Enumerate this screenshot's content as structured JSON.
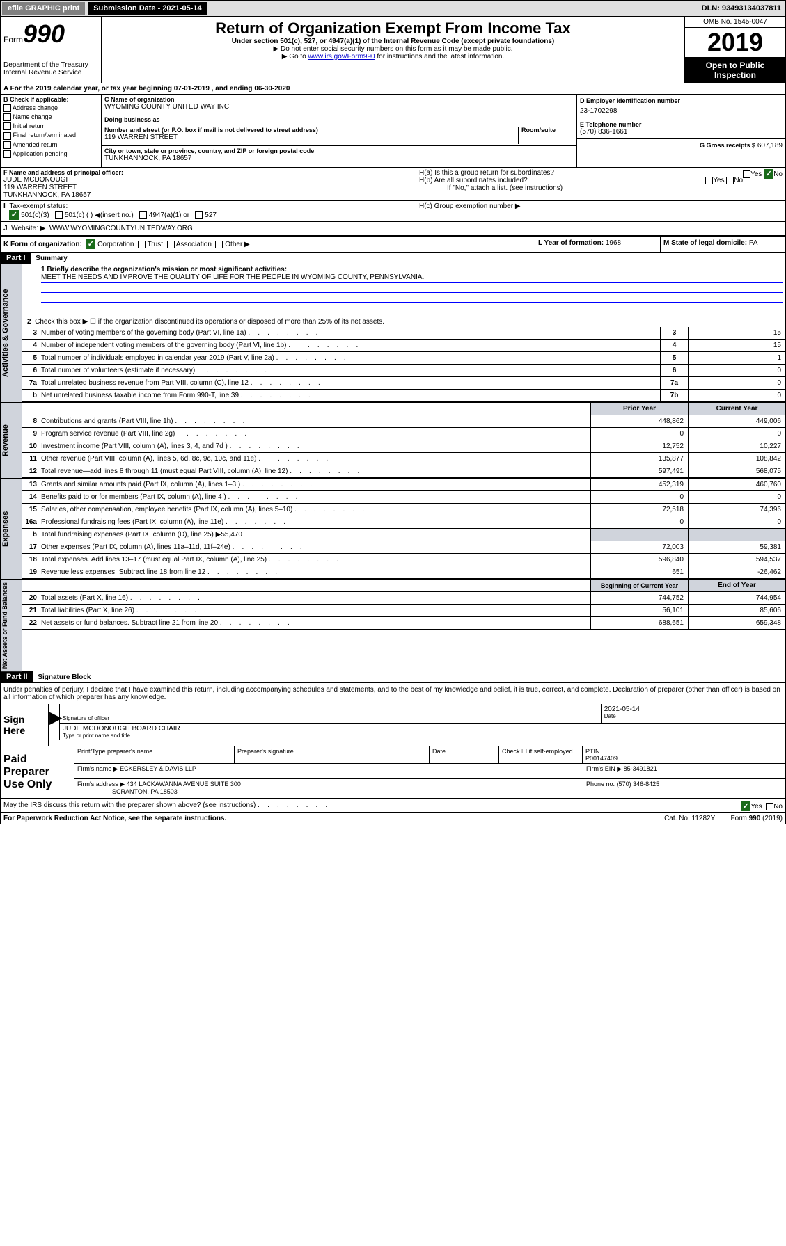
{
  "top": {
    "efile": "efile GRAPHIC print",
    "sub_date": "Submission Date - 2021-05-14",
    "dln": "DLN: 93493134037811"
  },
  "header": {
    "form_label": "Form",
    "form_no": "990",
    "dept": "Department of the Treasury Internal Revenue Service",
    "title": "Return of Organization Exempt From Income Tax",
    "subtitle": "Under section 501(c), 527, or 4947(a)(1) of the Internal Revenue Code (except private foundations)",
    "note1": "▶ Do not enter social security numbers on this form as it may be made public.",
    "note2_pre": "▶ Go to ",
    "note2_link": "www.irs.gov/Form990",
    "note2_post": " for instructions and the latest information.",
    "omb": "OMB No. 1545-0047",
    "year": "2019",
    "open": "Open to Public Inspection"
  },
  "period": "A For the 2019 calendar year, or tax year beginning 07-01-2019   , and ending 06-30-2020",
  "box_b": {
    "label": "B Check if applicable:",
    "items": [
      "Address change",
      "Name change",
      "Initial return",
      "Final return/terminated",
      "Amended return",
      "Application pending"
    ]
  },
  "box_c": {
    "name_label": "C Name of organization",
    "name": "WYOMING COUNTY UNITED WAY INC",
    "dba_label": "Doing business as",
    "addr_label": "Number and street (or P.O. box if mail is not delivered to street address)",
    "room_label": "Room/suite",
    "addr": "119 WARREN STREET",
    "city_label": "City or town, state or province, country, and ZIP or foreign postal code",
    "city": "TUNKHANNOCK, PA  18657"
  },
  "box_d": {
    "label": "D Employer identification number",
    "value": "23-1702298"
  },
  "box_e": {
    "label": "E Telephone number",
    "value": "(570) 836-1661"
  },
  "box_g": {
    "label": "G Gross receipts $",
    "value": "607,189"
  },
  "box_f": {
    "label": "F  Name and address of principal officer:",
    "name": "JUDE MCDONOUGH",
    "addr1": "119 WARREN STREET",
    "addr2": "TUNKHANNOCK, PA  18657"
  },
  "box_h": {
    "a_label": "H(a)  Is this a group return for subordinates?",
    "b_label": "H(b)  Are all subordinates included?",
    "b_note": "If \"No,\" attach a list. (see instructions)",
    "c_label": "H(c)  Group exemption number ▶"
  },
  "box_i": {
    "label": "Tax-exempt status:",
    "opts": [
      "501(c)(3)",
      "501(c) (  ) ◀(insert no.)",
      "4947(a)(1) or",
      "527"
    ]
  },
  "box_j": {
    "label": "Website: ▶",
    "value": "WWW.WYOMINGCOUNTYUNITEDWAY.ORG"
  },
  "box_k": "K Form of organization:",
  "box_k_opts": [
    "Corporation",
    "Trust",
    "Association",
    "Other ▶"
  ],
  "box_l": {
    "label": "L Year of formation:",
    "value": "1968"
  },
  "box_m": {
    "label": "M State of legal domicile:",
    "value": "PA"
  },
  "part1": {
    "hdr": "Part I",
    "title": "Summary"
  },
  "mission_label": "1  Briefly describe the organization's mission or most significant activities:",
  "mission": "MEET THE NEEDS AND IMPROVE THE QUALITY OF LIFE FOR THE PEOPLE IN WYOMING COUNTY, PENNSYLVANIA.",
  "line2": "Check this box ▶ ☐  if the organization discontinued its operations or disposed of more than 25% of its net assets.",
  "sections": {
    "gov": {
      "tab": "Activities & Governance",
      "lines": [
        {
          "n": "3",
          "d": "Number of voting members of the governing body (Part VI, line 1a)",
          "box": "3",
          "v": "15"
        },
        {
          "n": "4",
          "d": "Number of independent voting members of the governing body (Part VI, line 1b)",
          "box": "4",
          "v": "15"
        },
        {
          "n": "5",
          "d": "Total number of individuals employed in calendar year 2019 (Part V, line 2a)",
          "box": "5",
          "v": "1"
        },
        {
          "n": "6",
          "d": "Total number of volunteers (estimate if necessary)",
          "box": "6",
          "v": "0"
        },
        {
          "n": "7a",
          "d": "Total unrelated business revenue from Part VIII, column (C), line 12",
          "box": "7a",
          "v": "0"
        },
        {
          "n": "b",
          "d": "Net unrelated business taxable income from Form 990-T, line 39",
          "box": "7b",
          "v": "0"
        }
      ]
    },
    "rev": {
      "tab": "Revenue",
      "hdr_prior": "Prior Year",
      "hdr_curr": "Current Year",
      "lines": [
        {
          "n": "8",
          "d": "Contributions and grants (Part VIII, line 1h)",
          "p": "448,862",
          "c": "449,006"
        },
        {
          "n": "9",
          "d": "Program service revenue (Part VIII, line 2g)",
          "p": "0",
          "c": "0"
        },
        {
          "n": "10",
          "d": "Investment income (Part VIII, column (A), lines 3, 4, and 7d )",
          "p": "12,752",
          "c": "10,227"
        },
        {
          "n": "11",
          "d": "Other revenue (Part VIII, column (A), lines 5, 6d, 8c, 9c, 10c, and 11e)",
          "p": "135,877",
          "c": "108,842"
        },
        {
          "n": "12",
          "d": "Total revenue—add lines 8 through 11 (must equal Part VIII, column (A), line 12)",
          "p": "597,491",
          "c": "568,075"
        }
      ]
    },
    "exp": {
      "tab": "Expenses",
      "lines": [
        {
          "n": "13",
          "d": "Grants and similar amounts paid (Part IX, column (A), lines 1–3 )",
          "p": "452,319",
          "c": "460,760"
        },
        {
          "n": "14",
          "d": "Benefits paid to or for members (Part IX, column (A), line 4 )",
          "p": "0",
          "c": "0"
        },
        {
          "n": "15",
          "d": "Salaries, other compensation, employee benefits (Part IX, column (A), lines 5–10)",
          "p": "72,518",
          "c": "74,396"
        },
        {
          "n": "16a",
          "d": "Professional fundraising fees (Part IX, column (A), line 11e)",
          "p": "0",
          "c": "0"
        },
        {
          "n": "b",
          "d": "Total fundraising expenses (Part IX, column (D), line 25) ▶55,470",
          "p": "",
          "c": "",
          "shade": true
        },
        {
          "n": "17",
          "d": "Other expenses (Part IX, column (A), lines 11a–11d, 11f–24e)",
          "p": "72,003",
          "c": "59,381"
        },
        {
          "n": "18",
          "d": "Total expenses. Add lines 13–17 (must equal Part IX, column (A), line 25)",
          "p": "596,840",
          "c": "594,537"
        },
        {
          "n": "19",
          "d": "Revenue less expenses. Subtract line 18 from line 12",
          "p": "651",
          "c": "-26,462"
        }
      ]
    },
    "net": {
      "tab": "Net Assets or Fund Balances",
      "hdr_prior": "Beginning of Current Year",
      "hdr_curr": "End of Year",
      "lines": [
        {
          "n": "20",
          "d": "Total assets (Part X, line 16)",
          "p": "744,752",
          "c": "744,954"
        },
        {
          "n": "21",
          "d": "Total liabilities (Part X, line 26)",
          "p": "56,101",
          "c": "85,606"
        },
        {
          "n": "22",
          "d": "Net assets or fund balances. Subtract line 21 from line 20",
          "p": "688,651",
          "c": "659,348"
        }
      ]
    }
  },
  "part2": {
    "hdr": "Part II",
    "title": "Signature Block"
  },
  "perjury": "Under penalties of perjury, I declare that I have examined this return, including accompanying schedules and statements, and to the best of my knowledge and belief, it is true, correct, and complete. Declaration of preparer (other than officer) is based on all information of which preparer has any knowledge.",
  "sign": {
    "here": "Sign Here",
    "sig_label": "Signature of officer",
    "date": "2021-05-14",
    "date_label": "Date",
    "name": "JUDE MCDONOUGH  BOARD CHAIR",
    "name_label": "Type or print name and title"
  },
  "paid": {
    "label": "Paid Preparer Use Only",
    "print_label": "Print/Type preparer's name",
    "sig_label": "Preparer's signature",
    "date_label": "Date",
    "check_label": "Check ☐ if self-employed",
    "ptin_label": "PTIN",
    "ptin": "P00147409",
    "firm_name_label": "Firm's name   ▶",
    "firm_name": "ECKERSLEY & DAVIS LLP",
    "firm_ein_label": "Firm's EIN ▶",
    "firm_ein": "85-3491821",
    "firm_addr_label": "Firm's address ▶",
    "firm_addr1": "434 LACKAWANNA AVENUE SUITE 300",
    "firm_addr2": "SCRANTON, PA  18503",
    "phone_label": "Phone no.",
    "phone": "(570) 346-8425"
  },
  "discuss": "May the IRS discuss this return with the preparer shown above? (see instructions)",
  "footer": {
    "left": "For Paperwork Reduction Act Notice, see the separate instructions.",
    "mid": "Cat. No. 11282Y",
    "right": "Form 990 (2019)"
  }
}
